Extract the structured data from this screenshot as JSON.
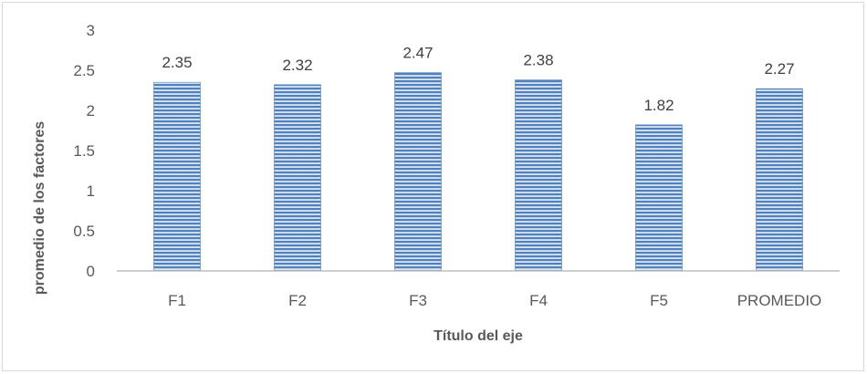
{
  "chart_data": {
    "type": "bar",
    "title": "",
    "xlabel": "Título del eje",
    "ylabel": "promedio de los factores",
    "categories": [
      "F1",
      "F2",
      "F3",
      "F4",
      "F5",
      "PROMEDIO"
    ],
    "values": [
      2.35,
      2.32,
      2.47,
      2.38,
      1.82,
      2.27
    ],
    "data_labels": [
      "2.35",
      "2.32",
      "2.47",
      "2.38",
      "1.82",
      "2.27"
    ],
    "ylim": [
      0,
      3
    ],
    "yticks": [
      "0",
      "0.5",
      "1",
      "1.5",
      "2",
      "2.5",
      "3"
    ],
    "grid": false,
    "legend": "none",
    "colors": {
      "bar": "#4f81bd",
      "bar_stripe": "#dbe5f1",
      "axis": "#bfbfbf"
    }
  }
}
